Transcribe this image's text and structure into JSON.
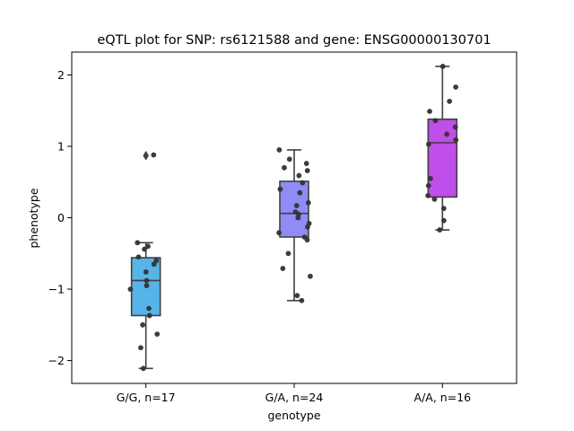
{
  "chart_data": {
    "type": "box",
    "title": "eQTL plot for SNP: rs6121588 and gene: ENSG00000130701",
    "xlabel": "genotype",
    "ylabel": "phenotype",
    "ylim": [
      -2.32,
      2.32
    ],
    "yticks": [
      -2,
      -1,
      0,
      1,
      2
    ],
    "ytick_labels": [
      "−2",
      "−1",
      "0",
      "1",
      "2"
    ],
    "grid": false,
    "categories": [
      "G/G, n=17",
      "G/A, n=24",
      "A/A, n=16"
    ],
    "colors": [
      "#56b4e9",
      "#8f8cf6",
      "#bf4eea"
    ],
    "boxes": [
      {
        "q1": -1.37,
        "median": -0.88,
        "q3": -0.56,
        "whisker_low": -2.11,
        "whisker_high": -0.35,
        "outliers": [
          0.87
        ]
      },
      {
        "q1": -0.27,
        "median": 0.06,
        "q3": 0.51,
        "whisker_low": -1.16,
        "whisker_high": 0.95,
        "outliers": []
      },
      {
        "q1": 0.29,
        "median": 1.05,
        "q3": 1.38,
        "whisker_low": -0.17,
        "whisker_high": 2.12,
        "outliers": []
      }
    ],
    "points": [
      {
        "category": 0,
        "values": [
          0.88,
          -0.4,
          -0.44,
          -0.55,
          -0.6,
          -0.65,
          -0.76,
          -0.88,
          -0.95,
          -1.0,
          -1.27,
          -1.37,
          -1.5,
          -1.63,
          -1.82,
          -2.11,
          -0.35
        ]
      },
      {
        "category": 1,
        "values": [
          0.95,
          0.82,
          0.76,
          0.7,
          0.66,
          0.59,
          0.49,
          0.4,
          0.35,
          0.21,
          0.17,
          0.08,
          0.05,
          0.0,
          -0.08,
          -0.13,
          -0.21,
          -0.27,
          -0.31,
          -0.5,
          -0.71,
          -0.82,
          -1.09,
          -1.16
        ]
      },
      {
        "category": 2,
        "values": [
          2.12,
          1.83,
          1.63,
          1.49,
          1.36,
          1.27,
          1.17,
          1.09,
          1.03,
          0.55,
          0.45,
          0.31,
          0.26,
          0.13,
          -0.04,
          -0.17
        ]
      }
    ]
  }
}
